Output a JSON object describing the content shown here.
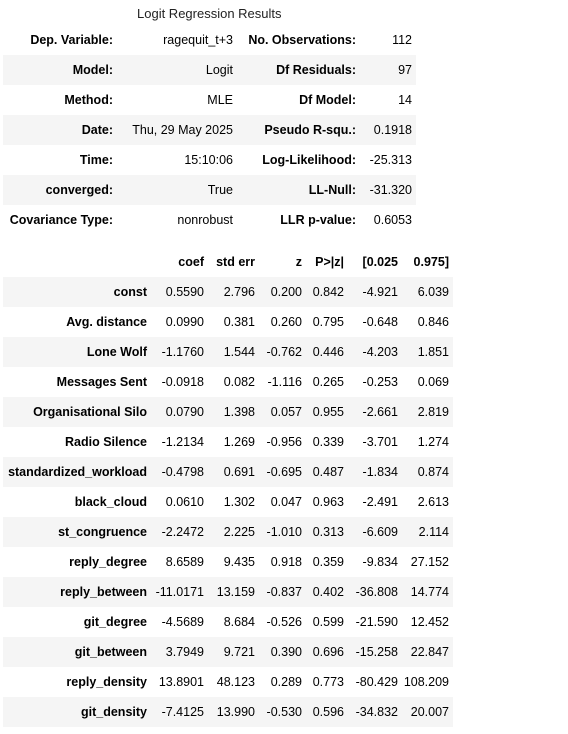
{
  "caption": "Logit Regression Results",
  "summary_rows": [
    {
      "label1": "Dep. Variable:",
      "value1": "ragequit_t+3",
      "label2": "No. Observations:",
      "value2": "112"
    },
    {
      "label1": "Model:",
      "value1": "Logit",
      "label2": "Df Residuals:",
      "value2": "97"
    },
    {
      "label1": "Method:",
      "value1": "MLE",
      "label2": "Df Model:",
      "value2": "14"
    },
    {
      "label1": "Date:",
      "value1": "Thu, 29 May 2025",
      "label2": "Pseudo R-squ.:",
      "value2": "0.1918"
    },
    {
      "label1": "Time:",
      "value1": "15:10:06",
      "label2": "Log-Likelihood:",
      "value2": "-25.313"
    },
    {
      "label1": "converged:",
      "value1": "True",
      "label2": "LL-Null:",
      "value2": "-31.320"
    },
    {
      "label1": "Covariance Type:",
      "value1": "nonrobust",
      "label2": "LLR p-value:",
      "value2": "0.6053"
    }
  ],
  "coef_headers": [
    "",
    "coef",
    "std err",
    "z",
    "P>|z|",
    "[0.025",
    "0.975]"
  ],
  "coef_rows": [
    [
      "const",
      "0.5590",
      "2.796",
      "0.200",
      "0.842",
      "-4.921",
      "6.039"
    ],
    [
      "Avg. distance",
      "0.0990",
      "0.381",
      "0.260",
      "0.795",
      "-0.648",
      "0.846"
    ],
    [
      "Lone Wolf",
      "-1.1760",
      "1.544",
      "-0.762",
      "0.446",
      "-4.203",
      "1.851"
    ],
    [
      "Messages Sent",
      "-0.0918",
      "0.082",
      "-1.116",
      "0.265",
      "-0.253",
      "0.069"
    ],
    [
      "Organisational Silo",
      "0.0790",
      "1.398",
      "0.057",
      "0.955",
      "-2.661",
      "2.819"
    ],
    [
      "Radio Silence",
      "-1.2134",
      "1.269",
      "-0.956",
      "0.339",
      "-3.701",
      "1.274"
    ],
    [
      "standardized_workload",
      "-0.4798",
      "0.691",
      "-0.695",
      "0.487",
      "-1.834",
      "0.874"
    ],
    [
      "black_cloud",
      "0.0610",
      "1.302",
      "0.047",
      "0.963",
      "-2.491",
      "2.613"
    ],
    [
      "st_congruence",
      "-2.2472",
      "2.225",
      "-1.010",
      "0.313",
      "-6.609",
      "2.114"
    ],
    [
      "reply_degree",
      "8.6589",
      "9.435",
      "0.918",
      "0.359",
      "-9.834",
      "27.152"
    ],
    [
      "reply_between",
      "-11.0171",
      "13.159",
      "-0.837",
      "0.402",
      "-36.808",
      "14.774"
    ],
    [
      "git_degree",
      "-4.5689",
      "8.684",
      "-0.526",
      "0.599",
      "-21.590",
      "12.452"
    ],
    [
      "git_between",
      "3.7949",
      "9.721",
      "0.390",
      "0.696",
      "-15.258",
      "22.847"
    ],
    [
      "reply_density",
      "13.8901",
      "48.123",
      "0.289",
      "0.773",
      "-80.429",
      "108.209"
    ],
    [
      "git_density",
      "-7.4125",
      "13.990",
      "-0.530",
      "0.596",
      "-34.832",
      "20.007"
    ]
  ]
}
